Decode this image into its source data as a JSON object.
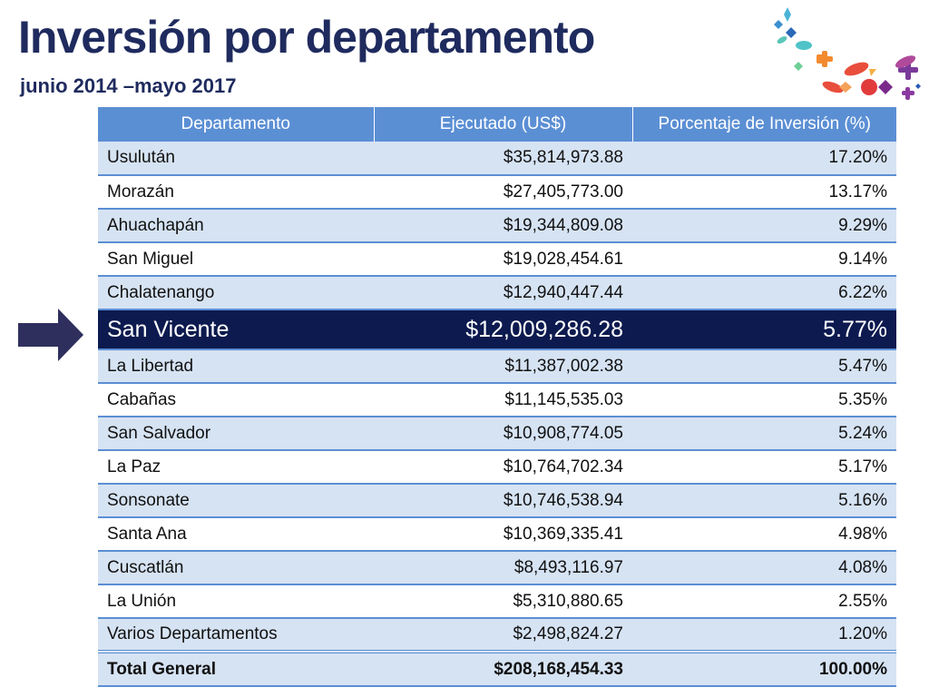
{
  "title": "Inversión por departamento",
  "subtitle": "junio 2014 –mayo 2017",
  "table": {
    "headers": [
      "Departamento",
      "Ejecutado (US$)",
      "Porcentaje de Inversión (%)"
    ],
    "rows": [
      {
        "departamento": "Usulután",
        "ejecutado": "$35,814,973.88",
        "porcentaje": "17.20%"
      },
      {
        "departamento": "Morazán",
        "ejecutado": "$27,405,773.00",
        "porcentaje": "13.17%"
      },
      {
        "departamento": "Ahuachapán",
        "ejecutado": "$19,344,809.08",
        "porcentaje": "9.29%"
      },
      {
        "departamento": "San Miguel",
        "ejecutado": "$19,028,454.61",
        "porcentaje": "9.14%"
      },
      {
        "departamento": "Chalatenango",
        "ejecutado": "$12,940,447.44",
        "porcentaje": "6.22%"
      },
      {
        "departamento": "San Vicente",
        "ejecutado": "$12,009,286.28",
        "porcentaje": "5.77%"
      },
      {
        "departamento": "La Libertad",
        "ejecutado": "$11,387,002.38",
        "porcentaje": "5.47%"
      },
      {
        "departamento": "Cabañas",
        "ejecutado": "$11,145,535.03",
        "porcentaje": "5.35%"
      },
      {
        "departamento": "San Salvador",
        "ejecutado": "$10,908,774.05",
        "porcentaje": "5.24%"
      },
      {
        "departamento": "La Paz",
        "ejecutado": "$10,764,702.34",
        "porcentaje": "5.17%"
      },
      {
        "departamento": "Sonsonate",
        "ejecutado": "$10,746,538.94",
        "porcentaje": "5.16%"
      },
      {
        "departamento": "Santa Ana",
        "ejecutado": "$10,369,335.41",
        "porcentaje": "4.98%"
      },
      {
        "departamento": "Cuscatlán",
        "ejecutado": "$8,493,116.97",
        "porcentaje": "4.08%"
      },
      {
        "departamento": "La Unión",
        "ejecutado": "$5,310,880.65",
        "porcentaje": "2.55%"
      },
      {
        "departamento": "Varios Departamentos",
        "ejecutado": "$2,498,824.27",
        "porcentaje": "1.20%"
      }
    ],
    "total": {
      "departamento": "Total General",
      "ejecutado": "$208,168,454.33",
      "porcentaje": "100.00%"
    }
  },
  "highlighted_row": "San Vicente",
  "icons": {
    "arrow": "right-arrow-icon",
    "decoration": "confetti-decoration"
  },
  "colors": {
    "title": "#1f2b5e",
    "header_bg": "#5b8fd4",
    "row_stripe": "#d6e3f3",
    "highlight_bg": "#0c1a4f",
    "arrow": "#2f2f5e"
  }
}
